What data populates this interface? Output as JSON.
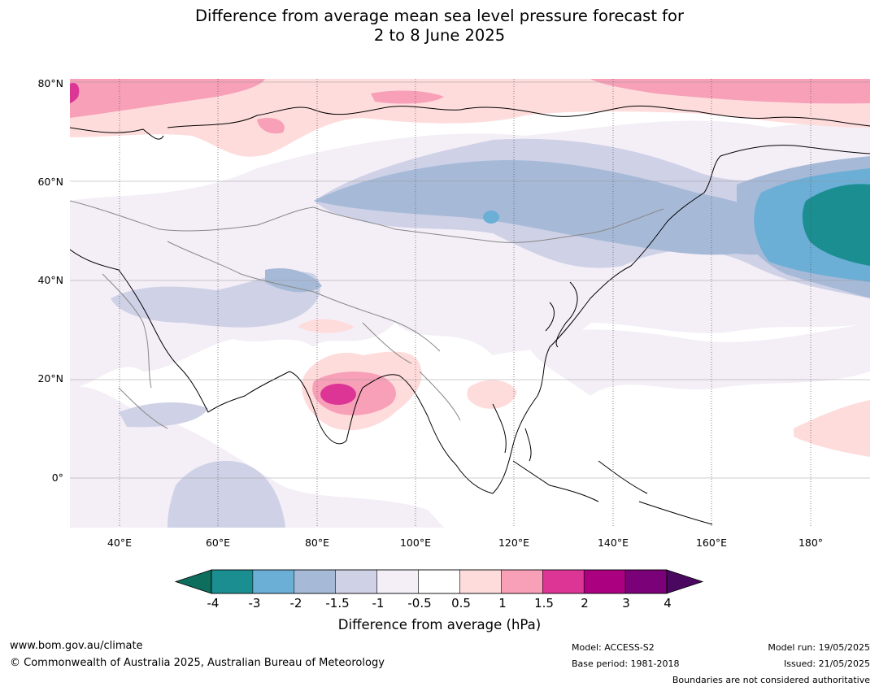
{
  "title": {
    "line1": "Difference from average mean sea level pressure forecast for",
    "line2": "2 to 8 June 2025"
  },
  "map": {
    "lat_labels": [
      "80°N",
      "60°N",
      "40°N",
      "20°N",
      "0°"
    ],
    "lon_labels": [
      "40°E",
      "60°E",
      "80°E",
      "100°E",
      "120°E",
      "140°E",
      "160°E",
      "180°"
    ]
  },
  "colorbar": {
    "title": "Difference from average (hPa)",
    "ticks": [
      "-4",
      "-3",
      "-2",
      "-1.5",
      "-1",
      "-0.5",
      "0.5",
      "1",
      "1.5",
      "2",
      "3",
      "4"
    ],
    "colors": [
      "#0e6e5e",
      "#1b8e92",
      "#6baed6",
      "#a6bad8",
      "#cfd1e6",
      "#f4eef7",
      "#ffffff",
      "#ffdcdc",
      "#f7a0b8",
      "#dc3596",
      "#ab0080",
      "#7a0177",
      "#4a0860"
    ]
  },
  "footer": {
    "website": "www.bom.gov.au/climate",
    "copyright": "© Commonwealth of Australia 2025, Australian Bureau of Meteorology",
    "model": "Model: ACCESS-S2",
    "base_period": "Base period: 1981-2018",
    "model_run": "Model run: 19/05/2025",
    "issued": "Issued: 21/05/2025",
    "boundaries_note": "Boundaries are not considered authoritative"
  }
}
